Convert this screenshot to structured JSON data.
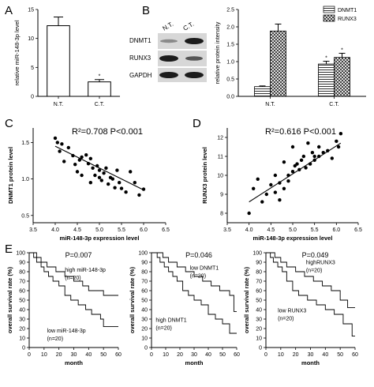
{
  "panels": {
    "A": "A",
    "B": "B",
    "C": "C",
    "D": "D",
    "E": "E"
  },
  "blot": {
    "columns": [
      "N.T.",
      "C.T."
    ],
    "rows": [
      "DNMT1",
      "RUNX3",
      "GAPDH"
    ]
  },
  "chart_data": [
    {
      "id": "A",
      "type": "bar",
      "categories": [
        "N.T.",
        "C.T."
      ],
      "values": [
        12.2,
        2.5
      ],
      "errors": [
        1.5,
        0.4
      ],
      "annotations": [
        "",
        "*"
      ],
      "ylabel": "relative miR-148-3p level",
      "ylim": [
        0,
        15
      ],
      "yticks": [
        0,
        5,
        10,
        15
      ],
      "colors": [
        "#ffffff"
      ]
    },
    {
      "id": "B",
      "type": "bar",
      "categories": [
        "N.T.",
        "C.T."
      ],
      "series": [
        {
          "name": "DNMT1",
          "values": [
            0.28,
            0.93
          ],
          "errors": [
            0.02,
            0.08
          ],
          "annotations": [
            "",
            "*"
          ],
          "pattern": "horizontal-lines"
        },
        {
          "name": "RUNX3",
          "values": [
            1.88,
            1.12
          ],
          "errors": [
            0.2,
            0.12
          ],
          "annotations": [
            "",
            "*"
          ],
          "pattern": "cross-hatch"
        }
      ],
      "ylabel": "relative protein intensity",
      "ylim": [
        0,
        2.5
      ],
      "yticks": [
        0.0,
        0.5,
        1.0,
        1.5,
        2.0,
        2.5
      ],
      "legend": "top-right"
    },
    {
      "id": "C",
      "type": "scatter",
      "annotation": "R²=0.708  P<0.001",
      "xlabel": "miR-148-3p expression level",
      "ylabel": "DNMT1 protein level",
      "xlim": [
        3.5,
        6.5
      ],
      "ylim": [
        0.4,
        1.7
      ],
      "xticks": [
        3.5,
        4.0,
        4.5,
        5.0,
        5.5,
        6.0,
        6.5
      ],
      "yticks": [
        0.5,
        1.0,
        1.5
      ],
      "x": [
        4.0,
        4.05,
        4.1,
        4.15,
        4.2,
        4.3,
        4.4,
        4.45,
        4.5,
        4.55,
        4.6,
        4.6,
        4.7,
        4.75,
        4.8,
        4.8,
        4.85,
        4.9,
        4.95,
        5.0,
        5.0,
        5.05,
        5.1,
        5.15,
        5.2,
        5.25,
        5.3,
        5.35,
        5.4,
        5.45,
        5.5,
        5.6,
        5.7,
        5.8,
        5.9,
        6.0
      ],
      "y": [
        1.56,
        1.5,
        1.38,
        1.48,
        1.24,
        1.43,
        1.32,
        1.2,
        1.1,
        1.26,
        1.3,
        1.05,
        1.33,
        1.21,
        1.28,
        0.95,
        1.15,
        1.05,
        1.18,
        1.02,
        1.12,
        0.98,
        1.08,
        1.15,
        0.93,
        1.02,
        1.0,
        0.88,
        1.12,
        0.95,
        0.87,
        0.82,
        1.1,
        0.95,
        0.78,
        0.86
      ],
      "trend": {
        "x": [
          4.0,
          6.0
        ],
        "y": [
          1.45,
          0.85
        ]
      }
    },
    {
      "id": "D",
      "type": "scatter",
      "annotation": "R²=0.616  P<0.001",
      "xlabel": "miR-148-3p expression level",
      "ylabel": "RUNX3 protein level",
      "xlim": [
        3.5,
        6.5
      ],
      "ylim": [
        7.5,
        12.5
      ],
      "xticks": [
        3.5,
        4.0,
        4.5,
        5.0,
        5.5,
        6.0,
        6.5
      ],
      "yticks": [
        8,
        9,
        10,
        11,
        12
      ],
      "x": [
        4.0,
        4.1,
        4.2,
        4.3,
        4.4,
        4.5,
        4.6,
        4.6,
        4.7,
        4.7,
        4.8,
        4.8,
        4.9,
        4.9,
        5.0,
        5.0,
        5.05,
        5.1,
        5.15,
        5.2,
        5.25,
        5.3,
        5.35,
        5.4,
        5.45,
        5.5,
        5.5,
        5.6,
        5.6,
        5.7,
        5.8,
        5.9,
        6.0,
        6.05,
        6.1
      ],
      "y": [
        8.0,
        9.3,
        9.8,
        8.6,
        9.0,
        9.5,
        9.1,
        10.0,
        9.6,
        8.7,
        10.7,
        9.3,
        10.0,
        9.7,
        10.2,
        11.5,
        10.5,
        10.6,
        10.3,
        10.8,
        11.0,
        10.4,
        11.7,
        10.6,
        11.2,
        11.0,
        10.8,
        11.5,
        11.0,
        11.2,
        11.3,
        10.9,
        11.8,
        11.5,
        12.2
      ],
      "trend": {
        "x": [
          4.0,
          6.1
        ],
        "y": [
          8.6,
          11.7
        ]
      }
    },
    {
      "id": "E1",
      "type": "line",
      "annotation": "P=0.007",
      "xlabel": "month",
      "ylabel": "overall survival rate (%)",
      "xlim": [
        0,
        60
      ],
      "ylim": [
        0,
        100
      ],
      "xticks": [
        0,
        10,
        20,
        30,
        40,
        50,
        60
      ],
      "yticks": [
        0,
        10,
        20,
        30,
        40,
        50,
        60,
        70,
        80,
        90,
        100
      ],
      "series": [
        {
          "name": "high miR-148-3p\n(n=20)",
          "x": [
            0,
            5,
            8,
            12,
            18,
            24,
            30,
            36,
            40,
            45,
            50,
            60
          ],
          "y": [
            100,
            95,
            90,
            85,
            80,
            75,
            70,
            65,
            60,
            60,
            55,
            55
          ]
        },
        {
          "name": "low miR-148-3p\n(n=20)",
          "x": [
            0,
            3,
            5,
            8,
            10,
            13,
            16,
            20,
            24,
            28,
            33,
            38,
            42,
            48,
            50,
            60
          ],
          "y": [
            100,
            95,
            90,
            85,
            80,
            75,
            70,
            65,
            55,
            50,
            45,
            40,
            35,
            30,
            22,
            22
          ]
        }
      ]
    },
    {
      "id": "E2",
      "type": "line",
      "annotation": "P=0.046",
      "xlabel": "month",
      "ylabel": "overall survival rate (%)",
      "xlim": [
        0,
        60
      ],
      "ylim": [
        0,
        100
      ],
      "xticks": [
        0,
        10,
        20,
        30,
        40,
        50,
        60
      ],
      "yticks": [
        0,
        10,
        20,
        30,
        40,
        50,
        60,
        70,
        80,
        90,
        100
      ],
      "series": [
        {
          "name": "low DNMT1\n(n=20)",
          "x": [
            0,
            8,
            12,
            18,
            24,
            30,
            36,
            42,
            48,
            55,
            58,
            60
          ],
          "y": [
            100,
            95,
            90,
            85,
            80,
            75,
            70,
            65,
            60,
            55,
            38,
            38
          ]
        },
        {
          "name": "high DNMT1\n(n=20)",
          "x": [
            0,
            4,
            6,
            9,
            12,
            15,
            18,
            22,
            26,
            30,
            35,
            40,
            45,
            50,
            55,
            60
          ],
          "y": [
            100,
            95,
            90,
            85,
            80,
            75,
            70,
            60,
            55,
            50,
            45,
            35,
            30,
            25,
            15,
            15
          ]
        }
      ]
    },
    {
      "id": "E3",
      "type": "line",
      "annotation": "P=0.049",
      "xlabel": "month",
      "ylabel": "overall survival rate (%)",
      "xlim": [
        0,
        60
      ],
      "ylim": [
        0,
        100
      ],
      "xticks": [
        0,
        10,
        20,
        30,
        40,
        50,
        60
      ],
      "yticks": [
        0,
        10,
        20,
        30,
        40,
        50,
        60,
        70,
        80,
        90,
        100
      ],
      "series": [
        {
          "name": "highRUNX3\n(n=20)",
          "x": [
            0,
            6,
            10,
            14,
            20,
            26,
            32,
            38,
            44,
            50,
            55,
            60
          ],
          "y": [
            100,
            95,
            90,
            85,
            80,
            75,
            70,
            65,
            60,
            50,
            42,
            42
          ]
        },
        {
          "name": "low RUNX3\n(n=20)",
          "x": [
            0,
            3,
            5,
            8,
            11,
            14,
            18,
            22,
            28,
            34,
            40,
            46,
            52,
            58,
            60
          ],
          "y": [
            100,
            95,
            90,
            85,
            80,
            70,
            60,
            55,
            50,
            45,
            40,
            35,
            25,
            12,
            12
          ]
        }
      ]
    }
  ]
}
